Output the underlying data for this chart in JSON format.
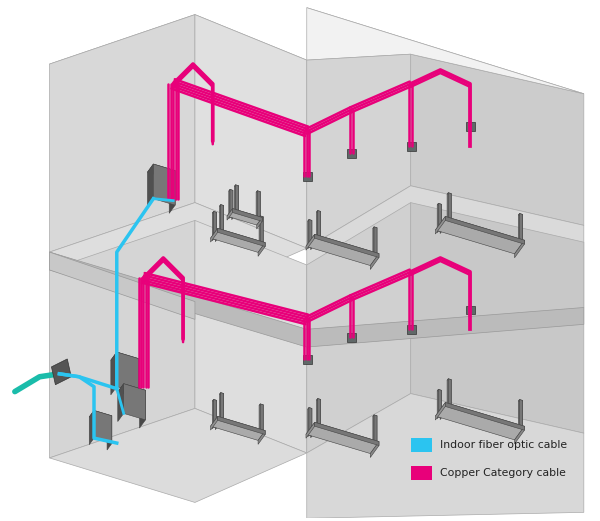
{
  "bg_color": "#ffffff",
  "fiber_color": "#2BC4F0",
  "copper_color": "#E8007A",
  "teal_color": "#1ABCAA",
  "legend_fiber_label": "Indoor fiber optic cable",
  "legend_copper_label": "Copper Category cable",
  "figsize": [
    6.0,
    5.21
  ],
  "dpi": 100,
  "wall_top": "#E8E8E8",
  "wall_left": "#D5D5D5",
  "wall_right": "#C8C8C8",
  "floor_color": "#DCDCDC",
  "ceiling_edge": "#C0C0C0"
}
